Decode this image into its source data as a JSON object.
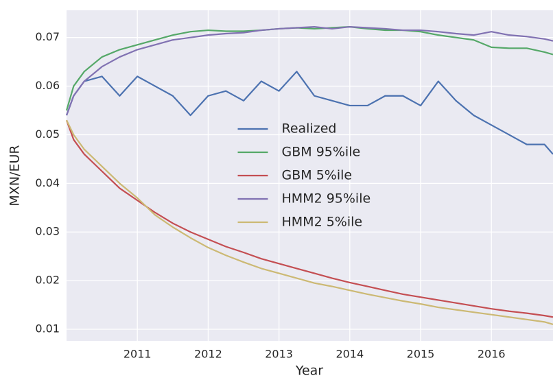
{
  "chart_data": {
    "type": "line",
    "x_label": "Year",
    "y_label": "MXN/EUR",
    "x": [
      2010,
      2010.1,
      2010.25,
      2010.5,
      2010.75,
      2011,
      2011.25,
      2011.5,
      2011.75,
      2012,
      2012.25,
      2012.5,
      2012.75,
      2013,
      2013.25,
      2013.5,
      2013.75,
      2014,
      2014.25,
      2014.5,
      2014.75,
      2015,
      2015.25,
      2015.5,
      2015.75,
      2016,
      2016.25,
      2016.5,
      2016.75,
      2016.87
    ],
    "series": [
      {
        "name": "Realized",
        "color": "#4c72b0",
        "values": [
          0.054,
          0.058,
          0.061,
          0.062,
          0.058,
          0.062,
          0.06,
          0.058,
          0.054,
          0.058,
          0.059,
          0.057,
          0.061,
          0.059,
          0.063,
          0.058,
          0.057,
          0.056,
          0.056,
          0.058,
          0.058,
          0.056,
          0.061,
          0.057,
          0.054,
          0.052,
          0.05,
          0.048,
          0.048,
          0.046
        ]
      },
      {
        "name": "GBM 95%ile",
        "color": "#55a868",
        "values": [
          0.055,
          0.06,
          0.063,
          0.066,
          0.0675,
          0.0685,
          0.0695,
          0.0705,
          0.0712,
          0.0715,
          0.0713,
          0.0713,
          0.0715,
          0.0718,
          0.072,
          0.0718,
          0.072,
          0.0722,
          0.0718,
          0.0715,
          0.0715,
          0.0712,
          0.0705,
          0.07,
          0.0695,
          0.068,
          0.0678,
          0.0678,
          0.067,
          0.0665
        ]
      },
      {
        "name": "GBM 5%ile",
        "color": "#c44e52",
        "values": [
          0.053,
          0.049,
          0.046,
          0.0425,
          0.039,
          0.0365,
          0.034,
          0.0318,
          0.03,
          0.0285,
          0.027,
          0.0258,
          0.0245,
          0.0235,
          0.0225,
          0.0215,
          0.0205,
          0.0196,
          0.0188,
          0.018,
          0.0172,
          0.0166,
          0.016,
          0.0154,
          0.0148,
          0.0142,
          0.0137,
          0.0133,
          0.0128,
          0.0125
        ]
      },
      {
        "name": "HMM2 95%ile",
        "color": "#8172b2",
        "values": [
          0.054,
          0.058,
          0.061,
          0.064,
          0.066,
          0.0675,
          0.0685,
          0.0695,
          0.07,
          0.0705,
          0.0708,
          0.071,
          0.0715,
          0.0718,
          0.072,
          0.0722,
          0.0718,
          0.0722,
          0.072,
          0.0718,
          0.0715,
          0.0715,
          0.0712,
          0.0708,
          0.0705,
          0.0712,
          0.0705,
          0.0702,
          0.0697,
          0.0693
        ]
      },
      {
        "name": "HMM2 5%ile",
        "color": "#ccb974",
        "values": [
          0.053,
          0.05,
          0.047,
          0.0435,
          0.04,
          0.037,
          0.0335,
          0.031,
          0.0288,
          0.0268,
          0.0252,
          0.0238,
          0.0225,
          0.0215,
          0.0205,
          0.0195,
          0.0188,
          0.018,
          0.0172,
          0.0165,
          0.0158,
          0.0152,
          0.0145,
          0.014,
          0.0135,
          0.013,
          0.0125,
          0.012,
          0.0115,
          0.011
        ]
      }
    ],
    "xlim": [
      2010.0,
      2016.87
    ],
    "xticks": [
      2011,
      2012,
      2013,
      2014,
      2015,
      2016
    ],
    "ylim": [
      0.0076,
      0.0756
    ],
    "yticks": [
      0.01,
      0.02,
      0.03,
      0.04,
      0.05,
      0.06,
      0.07
    ],
    "grid": true,
    "legend_position": "center"
  }
}
